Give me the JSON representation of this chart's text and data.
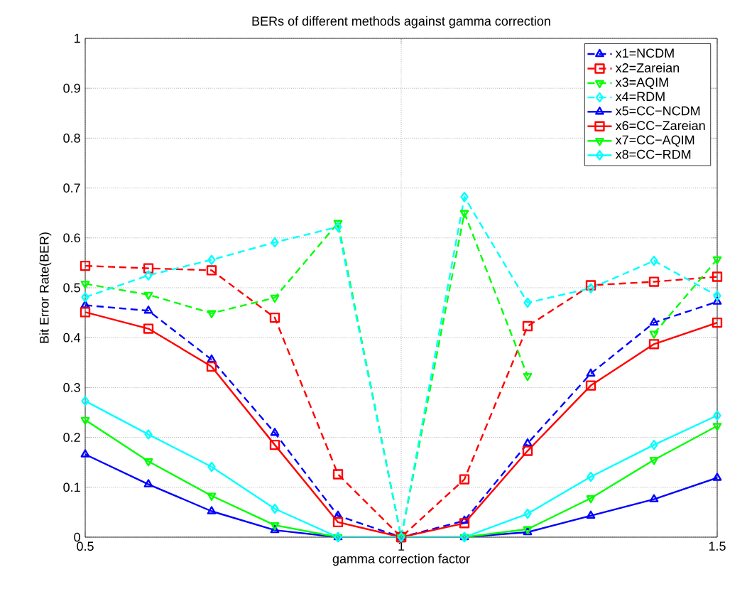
{
  "chart_data": {
    "type": "line",
    "title": "BERs of different methods against gamma correction",
    "xlabel": "gamma correction factor",
    "ylabel": "Bit Error Rate(BER)",
    "x": [
      0.5,
      0.6,
      0.7,
      0.8,
      0.9,
      1.0,
      1.1,
      1.2,
      1.3,
      1.4,
      1.5
    ],
    "xlim": [
      0.5,
      1.5
    ],
    "xticks": [
      0.5,
      1,
      1.5
    ],
    "ylim": [
      0,
      1
    ],
    "yticks": [
      0,
      0.1,
      0.2,
      0.3,
      0.4,
      0.5,
      0.6,
      0.7,
      0.8,
      0.9,
      1
    ],
    "grid": true,
    "legend": "top right",
    "series": [
      {
        "name": "x1=NCDM",
        "color": "#0000ff",
        "marker": "triangle",
        "line_style": "dashed",
        "values": [
          0.465,
          0.454,
          0.356,
          0.209,
          0.043,
          0,
          0.033,
          0.188,
          0.328,
          0.43,
          0.472
        ]
      },
      {
        "name": "x2=Zareian",
        "color": "#ff0000",
        "marker": "square",
        "line_style": "dashed",
        "values": [
          0.544,
          0.539,
          0.535,
          0.44,
          0.126,
          0,
          0.116,
          0.423,
          0.505,
          0.512,
          0.522
        ]
      },
      {
        "name": "x3=AQIM",
        "color": "#00ff00",
        "marker": "triangle down",
        "line_style": "dashed",
        "values": [
          0.508,
          0.486,
          0.449,
          0.48,
          0.63,
          0,
          0.65,
          0.323,
          null,
          0.408,
          0.557
        ]
      },
      {
        "name": "x4=RDM",
        "color": "#00ffff",
        "marker": "diamond",
        "line_style": "dashed",
        "values": [
          0.481,
          0.525,
          0.556,
          0.591,
          0.622,
          0,
          0.682,
          0.47,
          0.499,
          0.554,
          0.484
        ]
      },
      {
        "name": "x5=CC−NCDM",
        "color": "#0000ff",
        "marker": "triangle",
        "line_style": "solid",
        "values": [
          0.166,
          0.106,
          0.052,
          0.014,
          0,
          0,
          0,
          0.01,
          0.043,
          0.076,
          0.119
        ]
      },
      {
        "name": "x6=CC−Zareian",
        "color": "#ff0000",
        "marker": "square",
        "line_style": "solid",
        "values": [
          0.451,
          0.418,
          0.342,
          0.185,
          0.03,
          0,
          0.028,
          0.173,
          0.304,
          0.387,
          0.43
        ]
      },
      {
        "name": "x7=CC−AQIM",
        "color": "#00ff00",
        "marker": "triangle down",
        "line_style": "solid",
        "values": [
          0.235,
          0.152,
          0.083,
          0.024,
          0,
          0,
          0,
          0.016,
          0.078,
          0.155,
          0.223
        ]
      },
      {
        "name": "x8=CC−RDM",
        "color": "#00ffff",
        "marker": "diamond",
        "line_style": "solid",
        "values": [
          0.273,
          0.206,
          0.141,
          0.057,
          0,
          0,
          0,
          0.047,
          0.121,
          0.185,
          0.244
        ]
      }
    ]
  }
}
